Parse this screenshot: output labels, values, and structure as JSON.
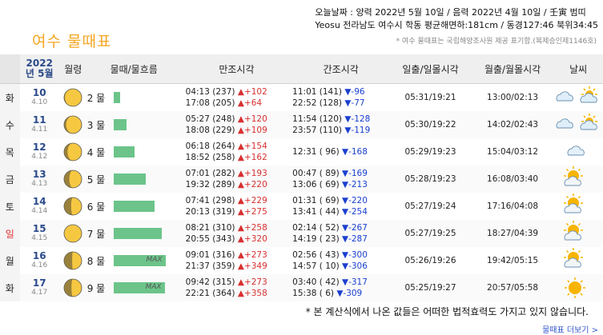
{
  "title": "여수  물때표",
  "info_line1": "오늘날짜 : 양력 2022년 5월 10일 / 음력 2022년 4월 10일 / 壬寅 범띠",
  "info_line2": "Yeosu 전라남도 여수시 학동 평균해면하:181cm / 동경127:46 북위34:45",
  "note": "* 여수 물때표는 국립해양조사원 제공 표기함.(복제승인제1146호)",
  "headers": {
    "date": "2022년 5월",
    "moon": "월령",
    "tide": "물때/물흐름",
    "high": "만조시각",
    "low": "간조시각",
    "sunrise": "일출/일몰시각",
    "moonrise": "월출/월몰시각",
    "weather": "날씨"
  },
  "rows": [
    {
      "dow": "화",
      "day": "10",
      "lunar": "4.10",
      "tide": "2 물",
      "flow": 0.13,
      "max": "",
      "h1": "04:13 (237)",
      "h1d": "▲+102",
      "h2": "17:08 (205)",
      "h2d": "▲+64",
      "l1": "11:01 (141)",
      "l1d": "▼-96",
      "l2": "22:52 (128)",
      "l2d": "▼-77",
      "sun": "05:31/19:21",
      "moon": "13:00/02:13",
      "wx": "cloudy-sun",
      "phase": 0.55
    },
    {
      "dow": "수",
      "day": "11",
      "lunar": "4.11",
      "tide": "3 물",
      "flow": 0.24,
      "max": "",
      "h1": "05:27 (248)",
      "h1d": "▲+120",
      "h2": "18:08 (229)",
      "h2d": "▲+109",
      "l1": "11:54 (120)",
      "l1d": "▼-128",
      "l2": "23:57 (110)",
      "l2d": "▼-119",
      "sun": "05:30/19:22",
      "moon": "14:02/02:43",
      "wx": "cloudy-sun",
      "phase": 0.62
    },
    {
      "dow": "목",
      "day": "12",
      "lunar": "4.12",
      "tide": "4 물",
      "flow": 0.4,
      "max": "",
      "h1": "06:18 (264)",
      "h1d": "▲+154",
      "h2": "18:52 (258)",
      "h2d": "▲+162",
      "l1": "12:31 ( 96)",
      "l1d": "▼-168",
      "l2": "",
      "l2d": "",
      "sun": "05:29/19:23",
      "moon": "15:04/03:12",
      "wx": "cloudy",
      "phase": 0.7
    },
    {
      "dow": "금",
      "day": "13",
      "lunar": "4.13",
      "tide": "5 물",
      "flow": 0.62,
      "max": "",
      "h1": "07:01 (282)",
      "h1d": "▲+193",
      "h2": "19:32 (289)",
      "h2d": "▲+220",
      "l1": "00:47 ( 89)",
      "l1d": "▼-169",
      "l2": "13:06 ( 69)",
      "l2d": "▼-213",
      "sun": "05:28/19:23",
      "moon": "16:08/03:40",
      "wx": "sun-cloud",
      "phase": 0.8
    },
    {
      "dow": "토",
      "day": "14",
      "lunar": "4.14",
      "tide": "6 물",
      "flow": 0.78,
      "max": "",
      "h1": "07:41 (298)",
      "h1d": "▲+229",
      "h2": "20:13 (319)",
      "h2d": "▲+275",
      "l1": "01:31 ( 69)",
      "l1d": "▼-220",
      "l2": "13:41 ( 44)",
      "l2d": "▼-254",
      "sun": "05:27/19:24",
      "moon": "17:16/04:08",
      "wx": "sun-cloud",
      "phase": 0.9
    },
    {
      "dow": "일",
      "day": "15",
      "lunar": "4.15",
      "tide": "7 물",
      "flow": 0.92,
      "max": "",
      "h1": "08:21 (310)",
      "h1d": "▲+258",
      "h2": "20:55 (343)",
      "h2d": "▲+320",
      "l1": "02:14 ( 52)",
      "l1d": "▼-267",
      "l2": "14:19 ( 23)",
      "l2d": "▼-287",
      "sun": "05:27/19:25",
      "moon": "18:27/04:39",
      "wx": "sun-cloud",
      "phase": 1.0
    },
    {
      "dow": "월",
      "day": "16",
      "lunar": "4.16",
      "tide": "8 물",
      "flow": 1.0,
      "max": "MAX",
      "h1": "09:01 (316)",
      "h1d": "▲+273",
      "h2": "21:37 (359)",
      "h2d": "▲+349",
      "l1": "02:56 ( 43)",
      "l1d": "▼-300",
      "l2": "14:57 ( 10)",
      "l2d": "▼-306",
      "sun": "05:26/19:26",
      "moon": "19:42/05:15",
      "wx": "sun-cloud",
      "phase": 0.96
    },
    {
      "dow": "화",
      "day": "17",
      "lunar": "4.17",
      "tide": "9 물",
      "flow": 0.98,
      "max": "MAX",
      "h1": "09:42 (315)",
      "h1d": "▲+273",
      "h2": "22:21 (364)",
      "h2d": "▲+358",
      "l1": "03:40 ( 42)",
      "l1d": "▼-317",
      "l2": "15:38 (  6)",
      "l2d": "▼-309",
      "sun": "05:25/19:27",
      "moon": "20:57/05:58",
      "wx": "sun",
      "phase": 0.92
    }
  ],
  "footer": "* 본 계산식에서 나온 값들은 어떠한 법적효력도 가지고 있지 않습니다.",
  "footer_link": "물때표 더보기 >"
}
